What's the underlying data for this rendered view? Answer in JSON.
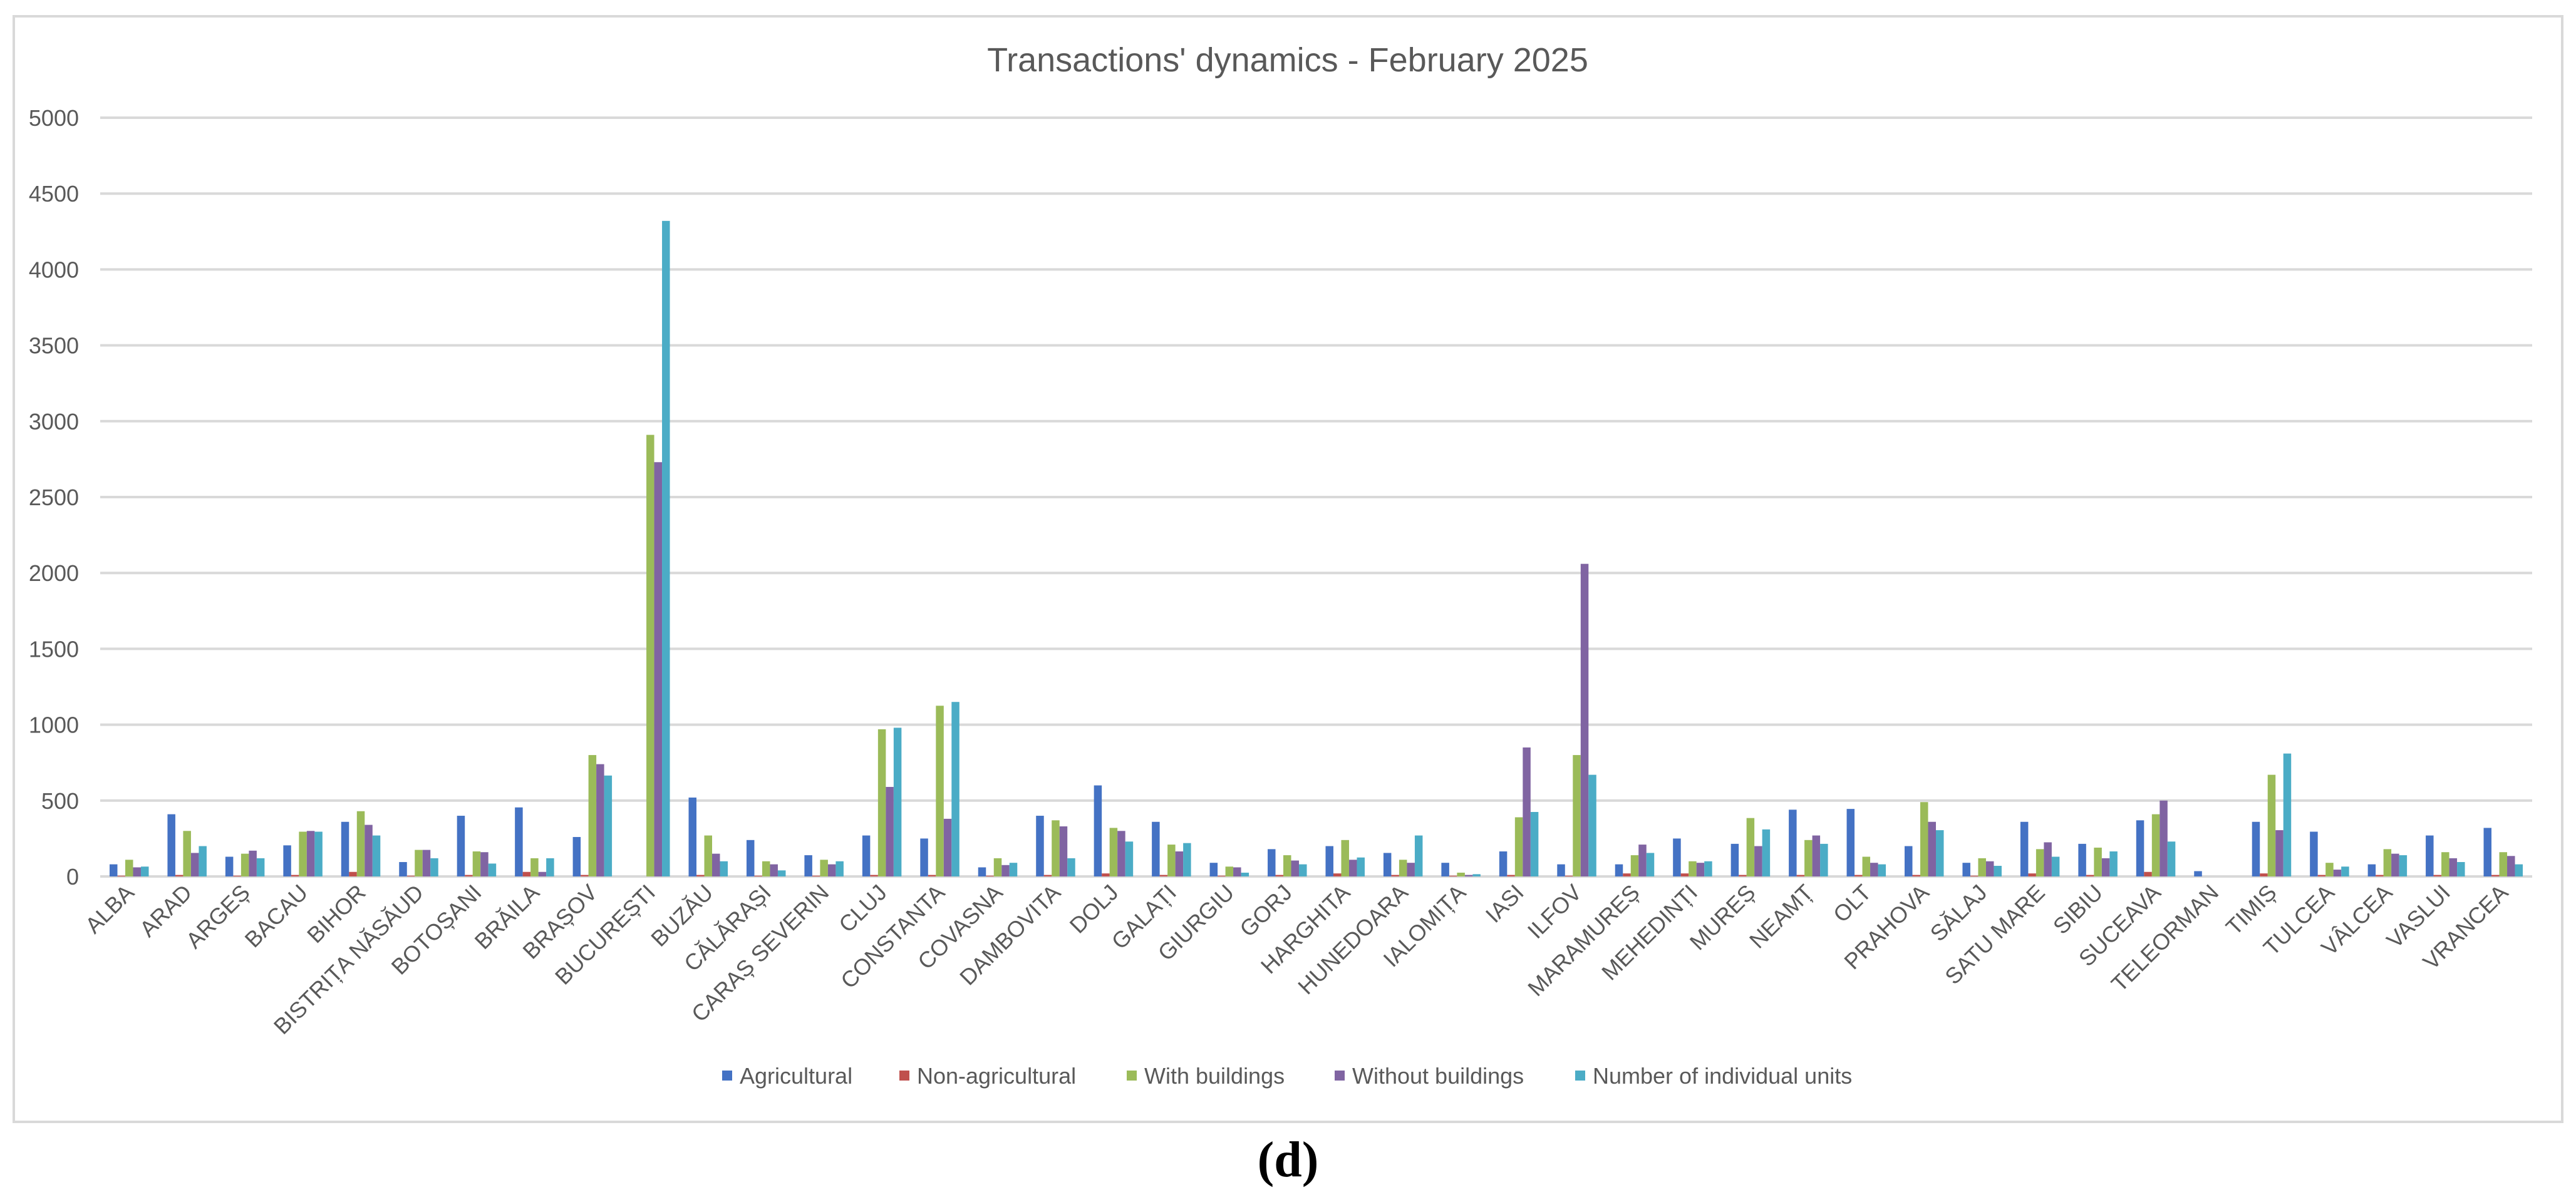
{
  "figure": {
    "caption": "(d)"
  },
  "colors": {
    "Agricultural": "#4472c4",
    "Non-agricultural": "#c0504d",
    "With buildings": "#9bbb59",
    "Without buildings": "#8064a2",
    "Number of individual units": "#4bacc6",
    "grid": "#d9d9d9",
    "text": "#595959"
  },
  "chart_data": {
    "type": "bar",
    "title": "Transactions' dynamics - February 2025",
    "xlabel": "",
    "ylabel": "",
    "ylim": [
      0,
      5000
    ],
    "yticks": [
      0,
      500,
      1000,
      1500,
      2000,
      2500,
      3000,
      3500,
      4000,
      4500,
      5000
    ],
    "grid": true,
    "legend_position": "bottom",
    "categories": [
      "ALBA",
      "ARAD",
      "ARGEȘ",
      "BACAU",
      "BIHOR",
      "BISTRIȚA NĂSĂUD",
      "BOTOȘANI",
      "BRĂILA",
      "BRAȘOV",
      "BUCUREȘTI",
      "BUZĂU",
      "CĂLĂRAȘI",
      "CARAȘ SEVERIN",
      "CLUJ",
      "CONSTANTA",
      "COVASNA",
      "DAMBOVITA",
      "DOLJ",
      "GALAȚI",
      "GIURGIU",
      "GORJ",
      "HARGHITA",
      "HUNEDOARA",
      "IALOMIȚA",
      "IASI",
      "ILFOV",
      "MARAMUREȘ",
      "MEHEDINȚI",
      "MUREȘ",
      "NEAMȚ",
      "OLT",
      "PRAHOVA",
      "SĂLAJ",
      "SATU MARE",
      "SIBIU",
      "SUCEAVA",
      "TELEORMAN",
      "TIMIȘ",
      "TULCEA",
      "VÂLCEA",
      "VASLUI",
      "VRANCEA"
    ],
    "series": [
      {
        "name": "Agricultural",
        "values": [
          80,
          410,
          130,
          205,
          360,
          95,
          400,
          455,
          260,
          0,
          520,
          240,
          140,
          270,
          250,
          60,
          400,
          600,
          360,
          90,
          180,
          200,
          155,
          90,
          165,
          80,
          80,
          250,
          215,
          440,
          445,
          200,
          90,
          360,
          215,
          370,
          35,
          360,
          295,
          80,
          270,
          320
        ]
      },
      {
        "name": "Non-agricultural",
        "values": [
          5,
          10,
          5,
          10,
          30,
          5,
          10,
          30,
          10,
          0,
          10,
          5,
          5,
          10,
          10,
          5,
          10,
          20,
          10,
          5,
          10,
          20,
          10,
          5,
          10,
          5,
          20,
          20,
          10,
          10,
          10,
          10,
          5,
          20,
          10,
          30,
          0,
          20,
          10,
          10,
          10,
          10
        ]
      },
      {
        "name": "With buildings",
        "values": [
          110,
          300,
          150,
          295,
          430,
          175,
          165,
          120,
          800,
          2910,
          270,
          100,
          110,
          970,
          1125,
          120,
          370,
          320,
          210,
          65,
          140,
          240,
          110,
          25,
          390,
          800,
          140,
          100,
          385,
          240,
          130,
          490,
          120,
          180,
          190,
          410,
          0,
          670,
          90,
          180,
          160,
          160
        ]
      },
      {
        "name": "Without buildings",
        "values": [
          60,
          155,
          170,
          300,
          340,
          175,
          160,
          30,
          740,
          2730,
          150,
          80,
          80,
          590,
          380,
          75,
          330,
          300,
          165,
          60,
          105,
          110,
          90,
          10,
          850,
          2060,
          210,
          90,
          200,
          270,
          90,
          360,
          100,
          225,
          120,
          500,
          0,
          305,
          45,
          150,
          120,
          135
        ]
      },
      {
        "name": "Number of individual units",
        "values": [
          65,
          200,
          120,
          295,
          270,
          120,
          85,
          120,
          665,
          4320,
          100,
          40,
          100,
          980,
          1150,
          90,
          120,
          230,
          220,
          25,
          80,
          125,
          270,
          15,
          425,
          670,
          155,
          100,
          310,
          215,
          80,
          305,
          70,
          130,
          165,
          230,
          0,
          810,
          65,
          140,
          95,
          80
        ]
      }
    ]
  }
}
